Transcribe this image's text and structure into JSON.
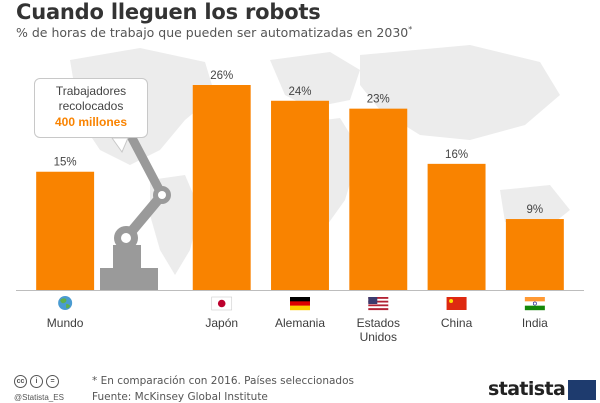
{
  "title": "Cuando lleguen los robots",
  "subtitle": "% de horas de trabajo que pueden ser automatizadas en 2030",
  "subtitle_marker": "*",
  "callout": {
    "line1": "Trabajadores",
    "line2": "recolocados",
    "value": "400 millones"
  },
  "footer": {
    "note": "* En comparación con 2016. Países seleccionados",
    "source": "Fuente: McKinsey Global Institute",
    "credit": "@Statista_ES",
    "brand": "statista"
  },
  "colors": {
    "bar": "#f98300",
    "map": "#ececec",
    "robot": "#9a9a9a",
    "text": "#3d3d3d"
  },
  "chart_data": {
    "type": "bar",
    "title": "Cuando lleguen los robots",
    "subtitle": "% de horas de trabajo que pueden ser automatizadas en 2030*",
    "categories": [
      "Mundo",
      "Japón",
      "Alemania",
      "Estados Unidos",
      "China",
      "India"
    ],
    "category_labels": [
      [
        "Mundo"
      ],
      [
        "Japón"
      ],
      [
        "Alemania"
      ],
      [
        "Estados",
        "Unidos"
      ],
      [
        "China"
      ],
      [
        "India"
      ]
    ],
    "values": [
      15,
      26,
      24,
      23,
      16,
      9
    ],
    "value_labels": [
      "15%",
      "26%",
      "24%",
      "23%",
      "16%",
      "9%"
    ],
    "category_icons": [
      "globe-icon",
      "japan-flag-icon",
      "germany-flag-icon",
      "usa-flag-icon",
      "china-flag-icon",
      "india-flag-icon"
    ],
    "ylim": [
      0,
      26
    ],
    "grid": false,
    "legend": "none"
  }
}
